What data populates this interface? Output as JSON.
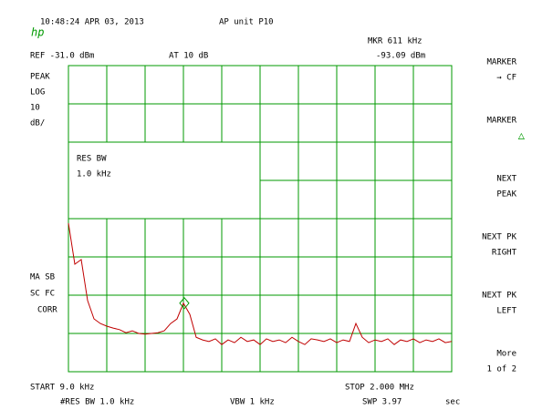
{
  "header": {
    "logo": "hp",
    "timestamp": "10:48:24 APR 03, 2013",
    "title": "AP unit P10"
  },
  "ref": {
    "ref_level": "REF -31.0 dBm",
    "attenuation": "AT 10 dB"
  },
  "marker_readout": {
    "frequency": "MKR 611 kHz",
    "level": "-93.09 dBm"
  },
  "left_labels": [
    "PEAK",
    "LOG",
    "10",
    "dB/"
  ],
  "left_lower_labels": [
    "MA SB",
    "SC FC",
    "CORR"
  ],
  "box": {
    "title": "RES BW",
    "value": "1.0 kHz"
  },
  "footer": {
    "start": "START 9.0 kHz",
    "stop": "STOP 2.000 MHz",
    "res_bw": "#RES BW 1.0 kHz",
    "vbw": "VBW 1 kHz",
    "sweep": "SWP 3.97",
    "sweep_unit": "sec"
  },
  "softkeys": [
    [
      "MARKER",
      "→ CF"
    ],
    [
      "MARKER",
      "△"
    ],
    [
      "NEXT",
      "PEAK"
    ],
    [
      "NEXT PK",
      "RIGHT"
    ],
    [
      "NEXT PK",
      "LEFT"
    ],
    [
      "More",
      "1 of 2"
    ]
  ],
  "trace": {
    "color": "#c00000",
    "xlim": [
      9,
      2000
    ],
    "ylim": [
      -111,
      -31
    ],
    "values": [
      -72.2,
      -82.9,
      -81.7,
      -92.4,
      -97.2,
      -98.4,
      -99.1,
      -99.6,
      -100.0,
      -100.8,
      -100.3,
      -101.0,
      -101.2,
      -101.0,
      -100.8,
      -100.3,
      -98.4,
      -97.2,
      -93.1,
      -96.0,
      -102.0,
      -102.7,
      -103.1,
      -102.4,
      -103.9,
      -102.7,
      -103.4,
      -102.0,
      -103.1,
      -102.7,
      -103.9,
      -102.4,
      -103.1,
      -102.7,
      -103.4,
      -102.0,
      -103.1,
      -103.9,
      -102.4,
      -102.7,
      -103.1,
      -102.4,
      -103.4,
      -102.7,
      -103.1,
      -98.4,
      -102.0,
      -103.4,
      -102.7,
      -103.1,
      -102.4,
      -103.9,
      -102.7,
      -103.1,
      -102.4,
      -103.4,
      -102.7,
      -103.1,
      -102.4,
      -103.4,
      -103.1
    ],
    "marker": {
      "freq": 611,
      "level": -93.09
    }
  }
}
